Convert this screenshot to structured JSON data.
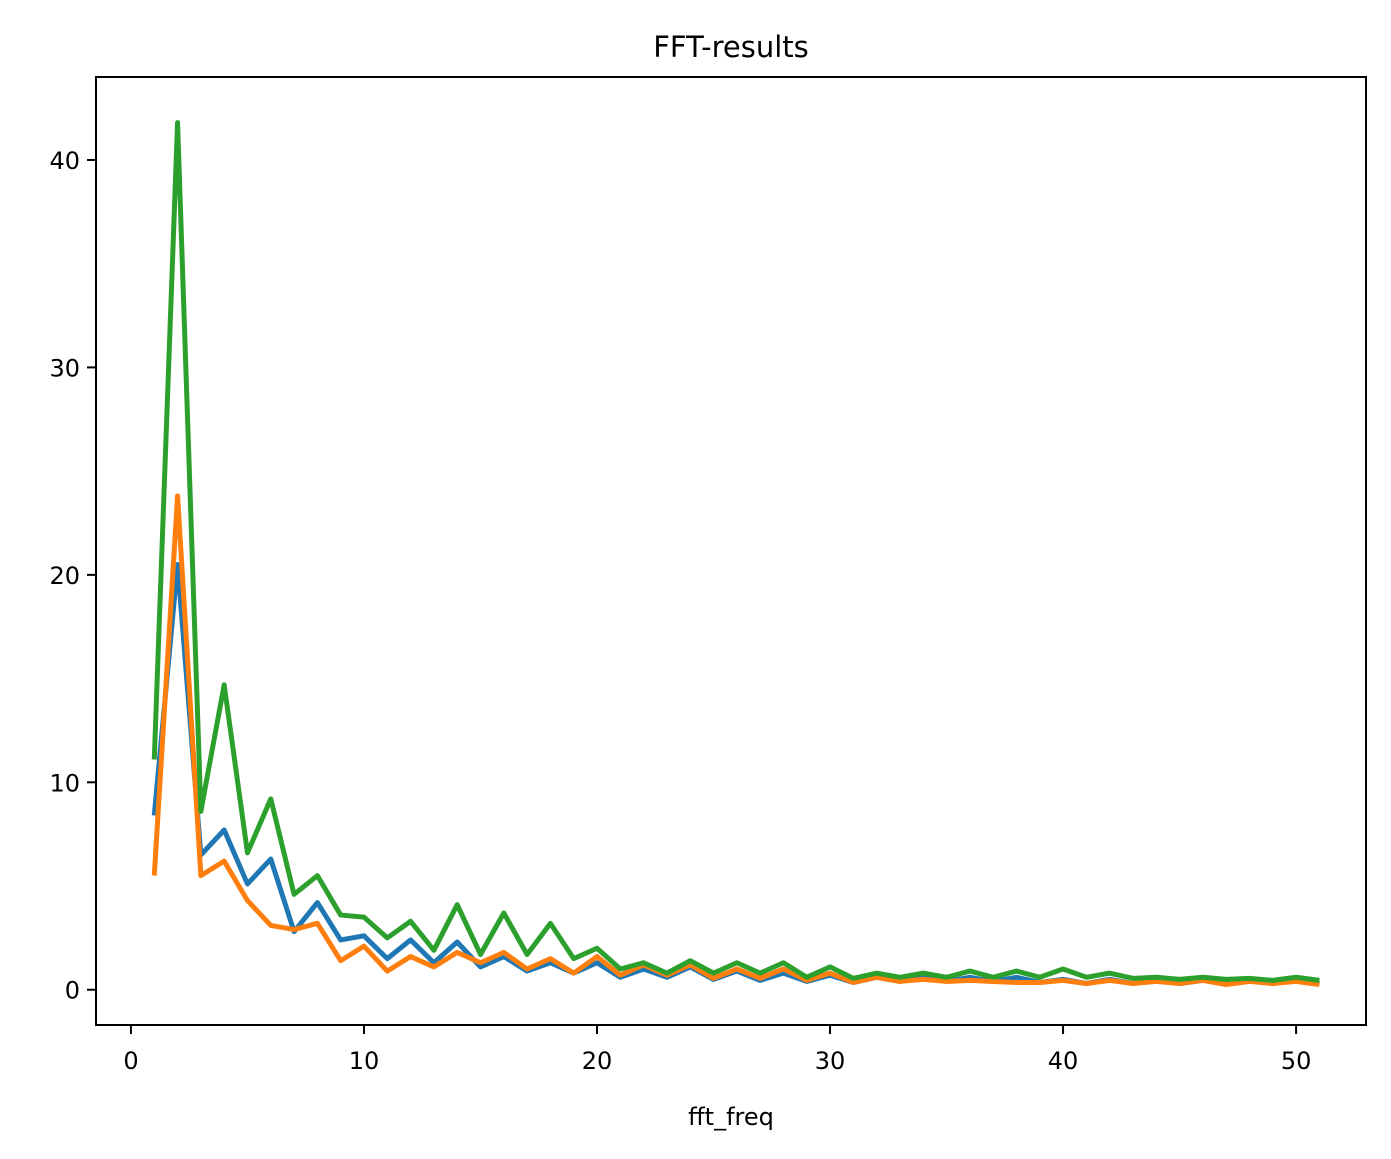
{
  "chart_data": {
    "type": "line",
    "title": "FFT-results",
    "xlabel": "fft_freq",
    "ylabel": "",
    "xlim": [
      -1.5,
      53
    ],
    "ylim": [
      -1.7,
      44
    ],
    "xticks": [
      0,
      10,
      20,
      30,
      40,
      50
    ],
    "yticks": [
      0,
      10,
      20,
      30,
      40
    ],
    "grid": false,
    "x": [
      1,
      2,
      3,
      4,
      5,
      6,
      7,
      8,
      9,
      10,
      11,
      12,
      13,
      14,
      15,
      16,
      17,
      18,
      19,
      20,
      21,
      22,
      23,
      24,
      25,
      26,
      27,
      28,
      29,
      30,
      31,
      32,
      33,
      34,
      35,
      36,
      37,
      38,
      39,
      40,
      41,
      42,
      43,
      44,
      45,
      46,
      47,
      48,
      49,
      50,
      51
    ],
    "series": [
      {
        "color": "#1f77b4",
        "values": [
          8.4,
          20.5,
          6.5,
          7.7,
          5.1,
          6.3,
          2.8,
          4.2,
          2.4,
          2.6,
          1.5,
          2.4,
          1.3,
          2.3,
          1.1,
          1.6,
          0.9,
          1.3,
          0.8,
          1.3,
          0.6,
          1.0,
          0.6,
          1.1,
          0.5,
          0.9,
          0.45,
          0.8,
          0.4,
          0.7,
          0.35,
          0.6,
          0.4,
          0.6,
          0.4,
          0.6,
          0.4,
          0.6,
          0.35,
          0.5,
          0.3,
          0.5,
          0.3,
          0.5,
          0.3,
          0.45,
          0.3,
          0.45,
          0.3,
          0.5,
          0.3
        ]
      },
      {
        "color": "#ff7f0e",
        "values": [
          5.5,
          23.8,
          5.5,
          6.2,
          4.3,
          3.1,
          2.9,
          3.2,
          1.4,
          2.1,
          0.9,
          1.6,
          1.1,
          1.8,
          1.3,
          1.8,
          1.0,
          1.5,
          0.8,
          1.6,
          0.7,
          1.2,
          0.7,
          1.2,
          0.55,
          1.0,
          0.55,
          1.0,
          0.45,
          0.8,
          0.35,
          0.6,
          0.4,
          0.5,
          0.4,
          0.45,
          0.4,
          0.35,
          0.35,
          0.45,
          0.3,
          0.45,
          0.3,
          0.4,
          0.3,
          0.45,
          0.25,
          0.4,
          0.3,
          0.4,
          0.25
        ]
      },
      {
        "color": "#2ca02c",
        "values": [
          11.1,
          41.8,
          8.6,
          14.7,
          6.6,
          9.2,
          4.6,
          5.5,
          3.6,
          3.5,
          2.5,
          3.3,
          1.9,
          4.1,
          1.7,
          3.7,
          1.7,
          3.2,
          1.5,
          2.0,
          1.0,
          1.3,
          0.8,
          1.4,
          0.8,
          1.3,
          0.8,
          1.3,
          0.6,
          1.1,
          0.55,
          0.8,
          0.6,
          0.8,
          0.6,
          0.9,
          0.6,
          0.9,
          0.6,
          1.0,
          0.6,
          0.8,
          0.55,
          0.6,
          0.5,
          0.6,
          0.5,
          0.55,
          0.45,
          0.6,
          0.45
        ]
      }
    ]
  }
}
